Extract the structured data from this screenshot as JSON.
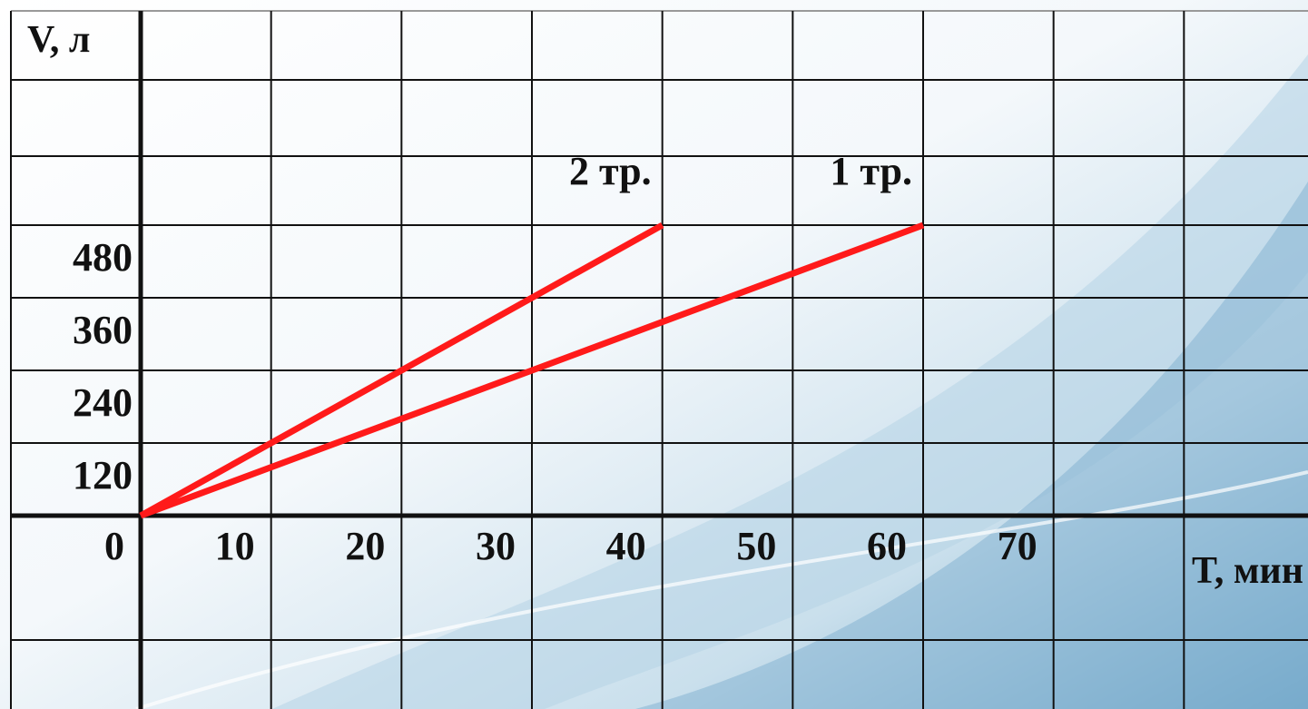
{
  "chart_data": {
    "type": "line",
    "y_label": "V, л",
    "x_label": "T, мин",
    "xlim": [
      0,
      90
    ],
    "xticks": [
      0,
      10,
      20,
      30,
      40,
      50,
      60,
      70
    ],
    "ylim": [
      0,
      480
    ],
    "yticks": [
      120,
      240,
      360,
      480
    ],
    "grid": true,
    "series": [
      {
        "name": "2 тр.",
        "color": "#ff1a1a",
        "x": [
          0,
          40
        ],
        "values": [
          0,
          480
        ]
      },
      {
        "name": "1 тр.",
        "color": "#ff1a1a",
        "x": [
          0,
          60
        ],
        "values": [
          0,
          480
        ]
      }
    ]
  }
}
